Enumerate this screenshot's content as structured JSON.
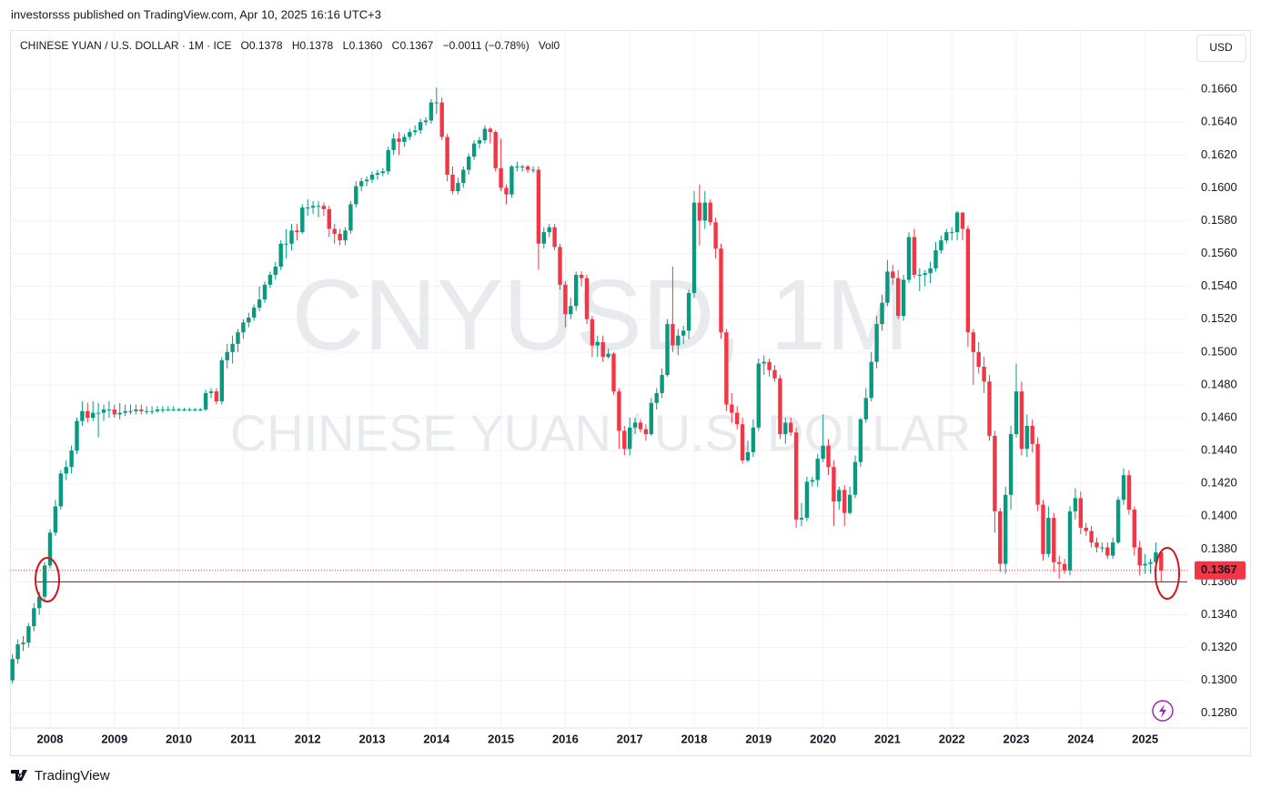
{
  "publisher_note": "investorsss published on TradingView.com, Apr 10, 2025 16:16 UTC+3",
  "brand": "TradingView",
  "currency_button": "USD",
  "watermark": [
    "CNYUSD, 1M",
    "CHINESE YUAN / U.S. DOLLAR"
  ],
  "top_legend": {
    "symbol": "CHINESE YUAN / U.S. DOLLAR · 1M · ICE",
    "ohlc": [
      {
        "key": "O",
        "value": "0.1378"
      },
      {
        "key": "H",
        "value": "0.1378"
      },
      {
        "key": "L",
        "value": "0.1360"
      },
      {
        "key": "C",
        "value": "0.1367"
      }
    ],
    "change": "−0.0011 (−0.78%)",
    "volume": {
      "key": "Vol",
      "value": "0"
    }
  },
  "chart_data": {
    "type": "candlestick",
    "up_color": "#089981",
    "down_color": "#f23645",
    "grid": true,
    "last_price": 0.1367,
    "reference_line": 0.136,
    "ylim": [
      0.1271,
      0.1695
    ],
    "yticks": [
      {
        "value": 0.128,
        "label": "0.1280"
      },
      {
        "value": 0.13,
        "label": "0.1300"
      },
      {
        "value": 0.132,
        "label": "0.1320"
      },
      {
        "value": 0.134,
        "label": "0.1340"
      },
      {
        "value": 0.136,
        "label": "0.1360"
      },
      {
        "value": 0.138,
        "label": "0.1380"
      },
      {
        "value": 0.14,
        "label": "0.1400"
      },
      {
        "value": 0.142,
        "label": "0.1420"
      },
      {
        "value": 0.144,
        "label": "0.1440"
      },
      {
        "value": 0.146,
        "label": "0.1460"
      },
      {
        "value": 0.148,
        "label": "0.1480"
      },
      {
        "value": 0.15,
        "label": "0.1500"
      },
      {
        "value": 0.152,
        "label": "0.1520"
      },
      {
        "value": 0.154,
        "label": "0.1540"
      },
      {
        "value": 0.156,
        "label": "0.1560"
      },
      {
        "value": 0.158,
        "label": "0.1580"
      },
      {
        "value": 0.16,
        "label": "0.1600"
      },
      {
        "value": 0.162,
        "label": "0.1620"
      },
      {
        "value": 0.164,
        "label": "0.1640"
      },
      {
        "value": 0.166,
        "label": "0.1660"
      }
    ],
    "categories": [
      null,
      null,
      null,
      null,
      null,
      null,
      null,
      "2008",
      null,
      null,
      null,
      null,
      null,
      null,
      null,
      null,
      null,
      null,
      null,
      "2009",
      null,
      null,
      null,
      null,
      null,
      null,
      null,
      null,
      null,
      null,
      null,
      "2010",
      null,
      null,
      null,
      null,
      null,
      null,
      null,
      null,
      null,
      null,
      null,
      "2011",
      null,
      null,
      null,
      null,
      null,
      null,
      null,
      null,
      null,
      null,
      null,
      "2012",
      null,
      null,
      null,
      null,
      null,
      null,
      null,
      null,
      null,
      null,
      null,
      "2013",
      null,
      null,
      null,
      null,
      null,
      null,
      null,
      null,
      null,
      null,
      null,
      "2014",
      null,
      null,
      null,
      null,
      null,
      null,
      null,
      null,
      null,
      null,
      null,
      "2015",
      null,
      null,
      null,
      null,
      null,
      null,
      null,
      null,
      null,
      null,
      null,
      "2016",
      null,
      null,
      null,
      null,
      null,
      null,
      null,
      null,
      null,
      null,
      null,
      "2017",
      null,
      null,
      null,
      null,
      null,
      null,
      null,
      null,
      null,
      null,
      null,
      "2018",
      null,
      null,
      null,
      null,
      null,
      null,
      null,
      null,
      null,
      null,
      null,
      "2019",
      null,
      null,
      null,
      null,
      null,
      null,
      null,
      null,
      null,
      null,
      null,
      "2020",
      null,
      null,
      null,
      null,
      null,
      null,
      null,
      null,
      null,
      null,
      null,
      "2021",
      null,
      null,
      null,
      null,
      null,
      null,
      null,
      null,
      null,
      null,
      null,
      "2022",
      null,
      null,
      null,
      null,
      null,
      null,
      null,
      null,
      null,
      null,
      null,
      "2023",
      null,
      null,
      null,
      null,
      null,
      null,
      null,
      null,
      null,
      null,
      null,
      "2024",
      null,
      null,
      null,
      null,
      null,
      null,
      null,
      null,
      null,
      null,
      null,
      "2025",
      null,
      null,
      null
    ],
    "open": [
      0.13,
      0.1313,
      0.1322,
      0.1323,
      0.1333,
      0.1344,
      0.1351,
      0.137,
      0.139,
      0.1406,
      0.1426,
      0.143,
      0.144,
      0.1458,
      0.1464,
      0.146,
      0.1463,
      0.1463,
      0.1465,
      0.1465,
      0.1462,
      0.1463,
      0.1464,
      0.1464,
      0.1465,
      0.1464,
      0.1464,
      0.1464,
      0.1465,
      0.1465,
      0.1465,
      0.1465,
      0.1465,
      0.1465,
      0.1465,
      0.1465,
      0.1465,
      0.1475,
      0.1476,
      0.147,
      0.1495,
      0.15,
      0.1505,
      0.1512,
      0.1518,
      0.1521,
      0.1527,
      0.1532,
      0.1541,
      0.1547,
      0.1552,
      0.1566,
      0.1566,
      0.1574,
      0.1573,
      0.1588,
      0.1588,
      0.1589,
      0.1589,
      0.1587,
      0.1575,
      0.1572,
      0.1568,
      0.1574,
      0.159,
      0.1601,
      0.1604,
      0.1605,
      0.1608,
      0.1609,
      0.161,
      0.1623,
      0.163,
      0.1628,
      0.1631,
      0.1634,
      0.1635,
      0.164,
      0.1641,
      0.1652,
      0.1652,
      0.1631,
      0.1608,
      0.1598,
      0.1603,
      0.1611,
      0.1619,
      0.1627,
      0.1629,
      0.1636,
      0.1634,
      0.1612,
      0.16,
      0.1596,
      0.1613,
      0.1613,
      0.1613,
      0.1611,
      0.1611,
      0.1566,
      0.1573,
      0.1576,
      0.1564,
      0.1541,
      0.1523,
      0.1528,
      0.1547,
      0.1545,
      0.152,
      0.1504,
      0.1506,
      0.1497,
      0.1499,
      0.1476,
      0.1452,
      0.1441,
      0.1454,
      0.1457,
      0.1453,
      0.145,
      0.1469,
      0.1475,
      0.1486,
      0.1517,
      0.1504,
      0.151,
      0.1513,
      0.1536,
      0.1591,
      0.158,
      0.1591,
      0.1579,
      0.1563,
      0.1512,
      0.1468,
      0.1463,
      0.1456,
      0.1434,
      0.1439,
      0.1454,
      0.1493,
      0.1494,
      0.1489,
      0.1484,
      0.145,
      0.1457,
      0.1451,
      0.1398,
      0.1399,
      0.1421,
      0.1422,
      0.1435,
      0.1443,
      0.143,
      0.1409,
      0.1416,
      0.1402,
      0.1413,
      0.1433,
      0.1459,
      0.1472,
      0.1494,
      0.1517,
      0.153,
      0.1549,
      0.1545,
      0.1522,
      0.1544,
      0.157,
      0.1547,
      0.1547,
      0.1548,
      0.1551,
      0.1562,
      0.1568,
      0.1573,
      0.1573,
      0.1585,
      0.1575,
      0.1512,
      0.15,
      0.1491,
      0.1482,
      0.1449,
      0.1403,
      0.1371,
      0.1413,
      0.145,
      0.1476,
      0.1441,
      0.1455,
      0.1444,
      0.1407,
      0.1377,
      0.1399,
      0.1372,
      0.1371,
      0.1367,
      0.1403,
      0.1411,
      0.1393,
      0.1391,
      0.1384,
      0.1381,
      0.1381,
      0.1376,
      0.1384,
      0.141,
      0.1425,
      0.1404,
      0.1381,
      0.137,
      0.1371,
      0.1372,
      0.1378
    ],
    "high": [
      0.1316,
      0.1325,
      0.1327,
      0.1335,
      0.1347,
      0.1354,
      0.1372,
      0.1392,
      0.141,
      0.1428,
      0.1434,
      0.1443,
      0.146,
      0.147,
      0.1469,
      0.147,
      0.1469,
      0.1468,
      0.147,
      0.1468,
      0.1469,
      0.1468,
      0.1468,
      0.1468,
      0.1468,
      0.1467,
      0.1467,
      0.1467,
      0.1467,
      0.1467,
      0.1467,
      0.1466,
      0.1466,
      0.1466,
      0.1466,
      0.1466,
      0.1477,
      0.1478,
      0.1478,
      0.1497,
      0.1505,
      0.151,
      0.1514,
      0.152,
      0.1524,
      0.1529,
      0.154,
      0.1543,
      0.1549,
      0.1555,
      0.1568,
      0.1575,
      0.1578,
      0.1578,
      0.159,
      0.1593,
      0.1592,
      0.1592,
      0.1591,
      0.1589,
      0.1578,
      0.1575,
      0.1576,
      0.1592,
      0.1604,
      0.1606,
      0.1607,
      0.161,
      0.1611,
      0.1612,
      0.1625,
      0.1633,
      0.1634,
      0.1633,
      0.1636,
      0.1638,
      0.1642,
      0.1643,
      0.1654,
      0.1661,
      0.1655,
      0.1633,
      0.1613,
      0.1606,
      0.1613,
      0.1621,
      0.1629,
      0.1631,
      0.1638,
      0.1637,
      0.1635,
      0.163,
      0.1602,
      0.1614,
      0.1616,
      0.1614,
      0.1614,
      0.1613,
      0.1613,
      0.1576,
      0.1578,
      0.1578,
      0.1566,
      0.1543,
      0.1533,
      0.1549,
      0.1549,
      0.1547,
      0.1522,
      0.151,
      0.151,
      0.1502,
      0.15,
      0.1478,
      0.1455,
      0.146,
      0.146,
      0.1459,
      0.1456,
      0.1472,
      0.1478,
      0.149,
      0.152,
      0.1552,
      0.1514,
      0.1516,
      0.1538,
      0.1598,
      0.1602,
      0.1598,
      0.1593,
      0.1582,
      0.1566,
      0.1514,
      0.1475,
      0.1467,
      0.146,
      0.1446,
      0.1459,
      0.1496,
      0.1498,
      0.1496,
      0.1492,
      0.1486,
      0.146,
      0.146,
      0.1454,
      0.1408,
      0.1424,
      0.1424,
      0.1438,
      0.1462,
      0.1447,
      0.1434,
      0.1418,
      0.1419,
      0.1418,
      0.1437,
      0.146,
      0.1478,
      0.15,
      0.1522,
      0.1535,
      0.1556,
      0.1553,
      0.155,
      0.1547,
      0.1573,
      0.1575,
      0.1551,
      0.155,
      0.1555,
      0.1567,
      0.1571,
      0.1575,
      0.1576,
      0.1586,
      0.1585,
      0.1577,
      0.1514,
      0.1506,
      0.1497,
      0.1486,
      0.1452,
      0.1405,
      0.1418,
      0.1455,
      0.1493,
      0.1482,
      0.1462,
      0.1459,
      0.1448,
      0.141,
      0.1406,
      0.1402,
      0.1376,
      0.1374,
      0.1406,
      0.1417,
      0.1415,
      0.1396,
      0.1394,
      0.1387,
      0.1384,
      0.1384,
      0.1387,
      0.1412,
      0.1429,
      0.1428,
      0.1406,
      0.1385,
      0.1377,
      0.1374,
      0.1384,
      0.1378
    ],
    "low": [
      0.1298,
      0.131,
      0.1318,
      0.132,
      0.133,
      0.134,
      0.1348,
      0.1368,
      0.1388,
      0.1404,
      0.1422,
      0.1426,
      0.1438,
      0.1455,
      0.1457,
      0.1458,
      0.1448,
      0.1458,
      0.146,
      0.146,
      0.1459,
      0.1461,
      0.1462,
      0.1462,
      0.1462,
      0.1462,
      0.1462,
      0.1463,
      0.1463,
      0.1464,
      0.1464,
      0.1464,
      0.1464,
      0.1464,
      0.1464,
      0.1464,
      0.1464,
      0.1472,
      0.1468,
      0.1468,
      0.149,
      0.1493,
      0.15,
      0.1508,
      0.1515,
      0.1519,
      0.1525,
      0.153,
      0.1539,
      0.1544,
      0.155,
      0.1557,
      0.1562,
      0.1568,
      0.1572,
      0.1583,
      0.1584,
      0.1582,
      0.1583,
      0.157,
      0.1566,
      0.1565,
      0.1565,
      0.1572,
      0.1588,
      0.1598,
      0.1601,
      0.1603,
      0.1605,
      0.1607,
      0.1608,
      0.162,
      0.162,
      0.1625,
      0.1629,
      0.1632,
      0.1633,
      0.1638,
      0.1639,
      0.1645,
      0.1629,
      0.1604,
      0.1596,
      0.1596,
      0.16,
      0.1608,
      0.1617,
      0.1624,
      0.1627,
      0.1627,
      0.161,
      0.1598,
      0.159,
      0.1594,
      0.161,
      0.161,
      0.1609,
      0.1609,
      0.155,
      0.1563,
      0.157,
      0.1562,
      0.1538,
      0.1515,
      0.152,
      0.1525,
      0.154,
      0.1517,
      0.1497,
      0.1497,
      0.1494,
      0.1496,
      0.1474,
      0.1441,
      0.1437,
      0.1437,
      0.145,
      0.1451,
      0.1446,
      0.1449,
      0.1465,
      0.1472,
      0.1485,
      0.15,
      0.1498,
      0.1505,
      0.1508,
      0.1533,
      0.1565,
      0.1575,
      0.1577,
      0.1557,
      0.1508,
      0.1464,
      0.1457,
      0.1453,
      0.1432,
      0.1433,
      0.1436,
      0.1452,
      0.1486,
      0.1485,
      0.1482,
      0.1447,
      0.1444,
      0.1449,
      0.1393,
      0.1394,
      0.1397,
      0.1418,
      0.1418,
      0.1433,
      0.1425,
      0.1394,
      0.1404,
      0.1394,
      0.1401,
      0.1411,
      0.143,
      0.1457,
      0.147,
      0.149,
      0.1513,
      0.1528,
      0.1541,
      0.152,
      0.1519,
      0.1542,
      0.1545,
      0.1537,
      0.154,
      0.1542,
      0.1549,
      0.156,
      0.1566,
      0.1568,
      0.1568,
      0.1568,
      0.1503,
      0.148,
      0.1487,
      0.1475,
      0.1446,
      0.139,
      0.1366,
      0.1365,
      0.1404,
      0.1448,
      0.1437,
      0.1436,
      0.1439,
      0.1403,
      0.1373,
      0.1375,
      0.1366,
      0.1362,
      0.1365,
      0.1364,
      0.1398,
      0.1389,
      0.1388,
      0.1381,
      0.1378,
      0.1378,
      0.1374,
      0.1374,
      0.1383,
      0.1407,
      0.1401,
      0.1376,
      0.1364,
      0.1365,
      0.1365,
      0.1367,
      0.136
    ],
    "close": [
      0.1313,
      0.1322,
      0.1323,
      0.1333,
      0.1344,
      0.1351,
      0.137,
      0.139,
      0.1406,
      0.1426,
      0.143,
      0.144,
      0.1458,
      0.1464,
      0.146,
      0.1463,
      0.1463,
      0.1465,
      0.1465,
      0.1462,
      0.1463,
      0.1464,
      0.1464,
      0.1465,
      0.1464,
      0.1464,
      0.1464,
      0.1465,
      0.1465,
      0.1465,
      0.1465,
      0.1465,
      0.1465,
      0.1465,
      0.1465,
      0.1465,
      0.1475,
      0.1476,
      0.147,
      0.1495,
      0.15,
      0.1505,
      0.1512,
      0.1518,
      0.1521,
      0.1527,
      0.1532,
      0.1541,
      0.1547,
      0.1552,
      0.1566,
      0.1566,
      0.1574,
      0.1573,
      0.1588,
      0.1588,
      0.1589,
      0.1589,
      0.1587,
      0.1575,
      0.1572,
      0.1568,
      0.1574,
      0.159,
      0.1601,
      0.1604,
      0.1605,
      0.1608,
      0.1609,
      0.161,
      0.1623,
      0.163,
      0.1628,
      0.1631,
      0.1634,
      0.1635,
      0.164,
      0.1641,
      0.1652,
      0.1652,
      0.1631,
      0.1608,
      0.1598,
      0.1603,
      0.1611,
      0.1619,
      0.1627,
      0.1629,
      0.1636,
      0.1634,
      0.1612,
      0.16,
      0.1596,
      0.1613,
      0.1613,
      0.1613,
      0.1611,
      0.1611,
      0.1566,
      0.1573,
      0.1576,
      0.1564,
      0.1541,
      0.1523,
      0.1528,
      0.1547,
      0.1545,
      0.152,
      0.1504,
      0.1506,
      0.1497,
      0.1499,
      0.1476,
      0.1452,
      0.1441,
      0.1454,
      0.1457,
      0.1453,
      0.145,
      0.1469,
      0.1475,
      0.1486,
      0.1517,
      0.1504,
      0.151,
      0.1513,
      0.1536,
      0.1591,
      0.158,
      0.1591,
      0.1579,
      0.1563,
      0.1512,
      0.1468,
      0.1463,
      0.1456,
      0.1434,
      0.1439,
      0.1454,
      0.1493,
      0.1494,
      0.1489,
      0.1484,
      0.145,
      0.1457,
      0.1451,
      0.1398,
      0.1399,
      0.1421,
      0.1422,
      0.1435,
      0.1443,
      0.143,
      0.1409,
      0.1416,
      0.1402,
      0.1413,
      0.1433,
      0.1459,
      0.1472,
      0.1494,
      0.1517,
      0.153,
      0.1549,
      0.1545,
      0.1522,
      0.1544,
      0.157,
      0.1547,
      0.1547,
      0.1548,
      0.1551,
      0.1562,
      0.1568,
      0.1573,
      0.1573,
      0.1585,
      0.1575,
      0.1512,
      0.15,
      0.1491,
      0.1482,
      0.1449,
      0.1403,
      0.1371,
      0.1413,
      0.145,
      0.1476,
      0.1441,
      0.1455,
      0.1444,
      0.1407,
      0.1377,
      0.1399,
      0.1372,
      0.1371,
      0.1367,
      0.1403,
      0.1411,
      0.1393,
      0.1391,
      0.1384,
      0.1381,
      0.1381,
      0.1376,
      0.1384,
      0.141,
      0.1425,
      0.1404,
      0.1381,
      0.137,
      0.1371,
      0.1372,
      0.1378,
      0.1367
    ]
  }
}
